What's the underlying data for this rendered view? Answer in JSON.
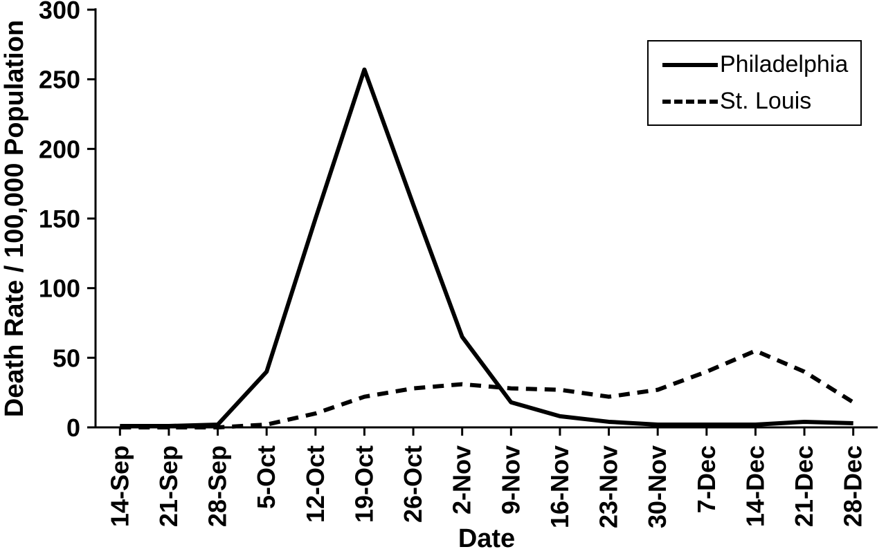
{
  "chart_data": {
    "type": "line",
    "title": "",
    "xlabel": "Date",
    "ylabel": "Death Rate / 100,000 Population",
    "ylim": [
      0,
      300
    ],
    "y_ticks": [
      0,
      50,
      100,
      150,
      200,
      250,
      300
    ],
    "grid": false,
    "legend_position": "top-right",
    "categories": [
      "14-Sep",
      "21-Sep",
      "28-Sep",
      "5-Oct",
      "12-Oct",
      "19-Oct",
      "26-Oct",
      "2-Nov",
      "9-Nov",
      "16-Nov",
      "23-Nov",
      "30-Nov",
      "7-Dec",
      "14-Dec",
      "21-Dec",
      "28-Dec"
    ],
    "series": [
      {
        "name": "Philadelphia",
        "color": "#000000",
        "line_style": "solid",
        "values": [
          1,
          1,
          2,
          40,
          150,
          257,
          160,
          65,
          18,
          8,
          4,
          2,
          2,
          2,
          4,
          3
        ]
      },
      {
        "name": "St. Louis",
        "color": "#000000",
        "line_style": "dashed",
        "values": [
          0,
          0,
          0,
          2,
          10,
          22,
          28,
          31,
          28,
          27,
          22,
          27,
          40,
          55,
          40,
          18
        ]
      }
    ]
  }
}
